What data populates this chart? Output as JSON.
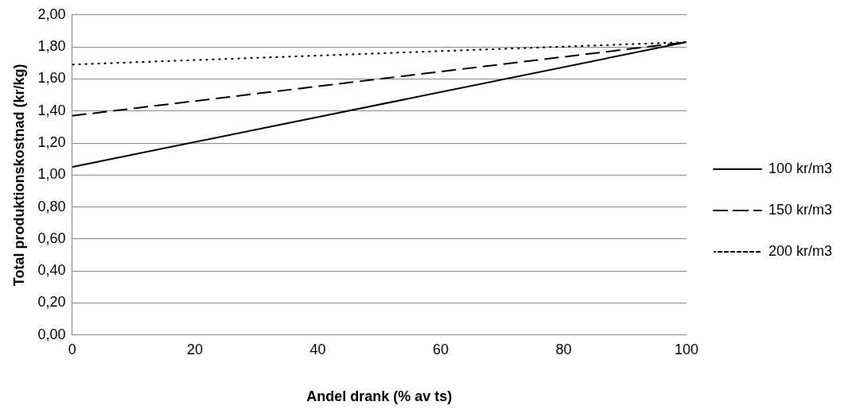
{
  "chart_data": {
    "type": "line",
    "xlabel": "Andel drank (% av ts)",
    "ylabel": "Total produktionskostnad (kr/kg)",
    "x": [
      0,
      100
    ],
    "series": [
      {
        "name": "100 kr/m3",
        "color": "#000000",
        "line_style": "solid",
        "values": [
          1.05,
          1.83
        ]
      },
      {
        "name": "150 kr/m3",
        "color": "#000000",
        "line_style": "dashed",
        "values": [
          1.37,
          1.83
        ]
      },
      {
        "name": "200 kr/m3",
        "color": "#000000",
        "line_style": "dotted",
        "values": [
          1.69,
          1.83
        ]
      }
    ],
    "xlim": [
      0,
      100
    ],
    "xticks": [
      0,
      20,
      40,
      60,
      80,
      100
    ],
    "ylim": [
      0,
      2
    ],
    "yticks": [
      {
        "value": 0,
        "label": "0,00"
      },
      {
        "value": 0.2,
        "label": "0,20"
      },
      {
        "value": 0.4,
        "label": "0,40"
      },
      {
        "value": 0.6,
        "label": "0,60"
      },
      {
        "value": 0.8,
        "label": "0,80"
      },
      {
        "value": 1,
        "label": "1,00"
      },
      {
        "value": 1.2,
        "label": "1,20"
      },
      {
        "value": 1.4,
        "label": "1,40"
      },
      {
        "value": 1.6,
        "label": "1,60"
      },
      {
        "value": 1.8,
        "label": "1,80"
      },
      {
        "value": 2,
        "label": "2,00"
      }
    ],
    "grid": "y",
    "legend": "right",
    "marker": "none"
  }
}
